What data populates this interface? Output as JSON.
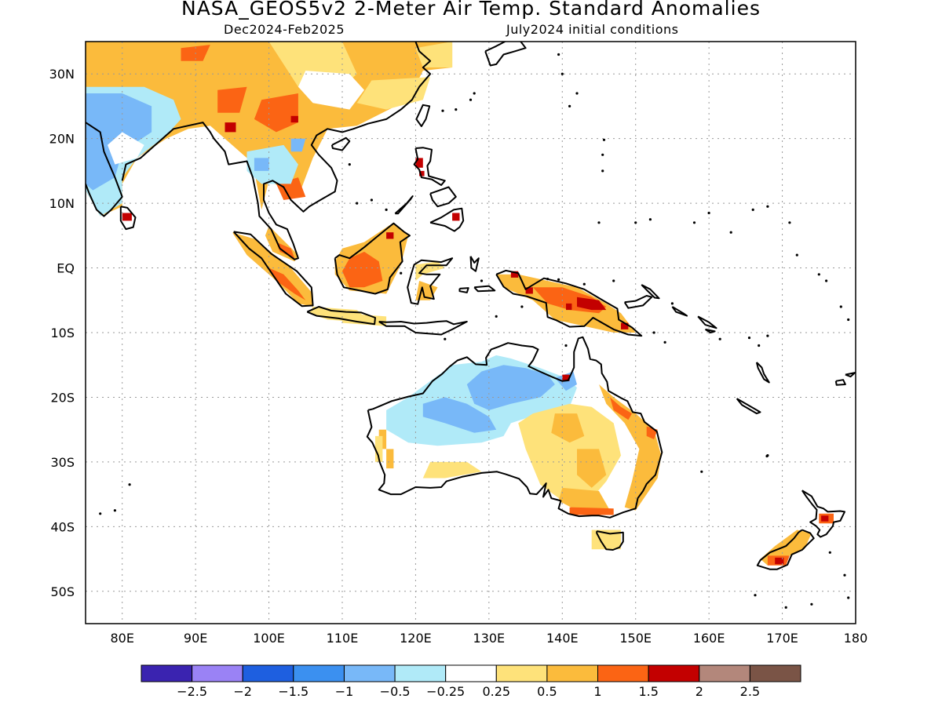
{
  "header": {
    "title": "NASA_GEOS5v2 2-Meter Air Temp. Standard Anomalies",
    "period": "Dec2024-Feb2025",
    "init": "July2024 initial conditions"
  },
  "map": {
    "lon_range": [
      75,
      180
    ],
    "lat_range": [
      -55,
      35
    ],
    "lat_ticks": [
      {
        "lat": 30,
        "label": "30N"
      },
      {
        "lat": 20,
        "label": "20N"
      },
      {
        "lat": 10,
        "label": "10N"
      },
      {
        "lat": 0,
        "label": "EQ"
      },
      {
        "lat": -10,
        "label": "10S"
      },
      {
        "lat": -20,
        "label": "20S"
      },
      {
        "lat": -30,
        "label": "30S"
      },
      {
        "lat": -40,
        "label": "40S"
      },
      {
        "lat": -50,
        "label": "50S"
      }
    ],
    "lon_ticks": [
      {
        "lon": 80,
        "label": "80E"
      },
      {
        "lon": 90,
        "label": "90E"
      },
      {
        "lon": 100,
        "label": "100E"
      },
      {
        "lon": 110,
        "label": "110E"
      },
      {
        "lon": 120,
        "label": "120E"
      },
      {
        "lon": 130,
        "label": "130E"
      },
      {
        "lon": 140,
        "label": "140E"
      },
      {
        "lon": 150,
        "label": "150E"
      },
      {
        "lon": 160,
        "label": "160E"
      },
      {
        "lon": 170,
        "label": "170E"
      },
      {
        "lon": 180,
        "label": "180"
      }
    ],
    "grid": true
  },
  "colorbar": {
    "colors": [
      "#3a23b0",
      "#9a82f5",
      "#1e5fe0",
      "#3b90f0",
      "#78b8f8",
      "#b0eaf8",
      "#ffffff",
      "#fee27a",
      "#fbbb3c",
      "#fb6414",
      "#c30000",
      "#b3877b",
      "#7a5446"
    ],
    "labels": [
      "-2.5",
      "-2",
      "-1.5",
      "-1",
      "-0.5",
      "-0.25",
      "0.25",
      "0.5",
      "1",
      "1.5",
      "2",
      "2.5"
    ]
  },
  "palette": {
    "ltblue": "#b0eaf8",
    "blue": "#78b8f8",
    "yellow": "#fee27a",
    "orange": "#fbbb3c",
    "dkorange": "#fb6414",
    "red": "#c30000"
  }
}
